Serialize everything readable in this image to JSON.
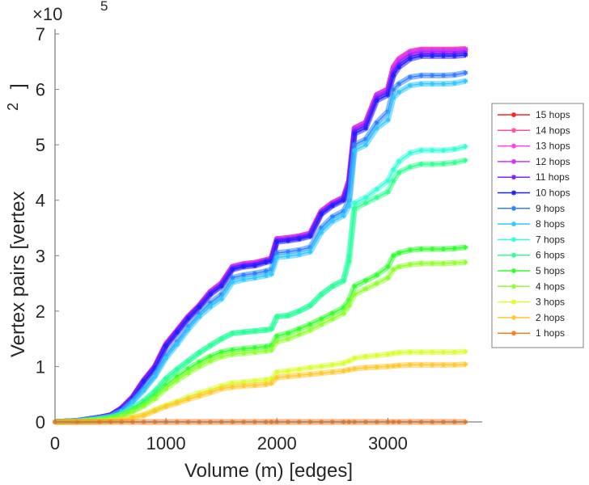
{
  "chart_data": {
    "type": "line",
    "title": "",
    "xlabel": "Volume (m) [edges]",
    "ylabel": "Vertex pairs [vertex",
    "ylabel_superscript": "2",
    "ylabel_close": "]",
    "y_multiplier_base": "×10",
    "y_multiplier_exponent": "5",
    "xlim": [
      0,
      3850
    ],
    "ylim": [
      0,
      7
    ],
    "xticks": [
      0,
      1000,
      2000,
      3000
    ],
    "xtick_labels": [
      "0",
      "1000",
      "2000",
      "3000"
    ],
    "yticks": [
      0,
      1,
      2,
      3,
      4,
      5,
      6,
      7
    ],
    "ytick_labels": [
      "0",
      "1",
      "2",
      "3",
      "4",
      "5",
      "6",
      "7"
    ],
    "grid": false,
    "legend_position": "right",
    "x": [
      0,
      200,
      400,
      500,
      600,
      700,
      800,
      900,
      1000,
      1100,
      1200,
      1300,
      1400,
      1500,
      1600,
      1700,
      1800,
      1900,
      1950,
      2000,
      2100,
      2200,
      2300,
      2400,
      2500,
      2600,
      2650,
      2700,
      2800,
      2900,
      3000,
      3050,
      3100,
      3200,
      3300,
      3400,
      3500,
      3600,
      3700
    ],
    "series": [
      {
        "name": "15 hops",
        "color": "#ff2020",
        "values": [
          0,
          0.02,
          0.08,
          0.12,
          0.25,
          0.45,
          0.75,
          1.0,
          1.4,
          1.65,
          1.9,
          2.1,
          2.35,
          2.5,
          2.8,
          2.85,
          2.87,
          2.92,
          2.95,
          3.3,
          3.32,
          3.35,
          3.4,
          3.8,
          3.95,
          4.05,
          4.35,
          5.3,
          5.4,
          5.9,
          6.0,
          6.4,
          6.55,
          6.68,
          6.72,
          6.72,
          6.72,
          6.72,
          6.73
        ]
      },
      {
        "name": "14 hops",
        "color": "#ff4fa0",
        "values": [
          0,
          0.02,
          0.08,
          0.12,
          0.25,
          0.45,
          0.75,
          1.0,
          1.4,
          1.65,
          1.9,
          2.1,
          2.35,
          2.5,
          2.8,
          2.85,
          2.87,
          2.92,
          2.95,
          3.3,
          3.32,
          3.35,
          3.4,
          3.8,
          3.95,
          4.05,
          4.35,
          5.3,
          5.4,
          5.9,
          6.0,
          6.4,
          6.55,
          6.68,
          6.72,
          6.72,
          6.72,
          6.72,
          6.73
        ]
      },
      {
        "name": "13 hops",
        "color": "#ff40e0",
        "values": [
          0,
          0.02,
          0.08,
          0.12,
          0.25,
          0.45,
          0.75,
          1.0,
          1.4,
          1.65,
          1.9,
          2.1,
          2.35,
          2.5,
          2.8,
          2.85,
          2.87,
          2.92,
          2.95,
          3.3,
          3.32,
          3.35,
          3.4,
          3.8,
          3.95,
          4.05,
          4.35,
          5.3,
          5.4,
          5.9,
          6.0,
          6.4,
          6.55,
          6.68,
          6.71,
          6.71,
          6.71,
          6.71,
          6.72
        ]
      },
      {
        "name": "12 hops",
        "color": "#d030ff",
        "values": [
          0,
          0.02,
          0.08,
          0.12,
          0.25,
          0.45,
          0.75,
          1.0,
          1.4,
          1.65,
          1.9,
          2.1,
          2.35,
          2.5,
          2.8,
          2.85,
          2.87,
          2.92,
          2.95,
          3.3,
          3.32,
          3.35,
          3.4,
          3.8,
          3.95,
          4.05,
          4.35,
          5.3,
          5.4,
          5.9,
          6.0,
          6.38,
          6.52,
          6.66,
          6.7,
          6.7,
          6.7,
          6.7,
          6.71
        ]
      },
      {
        "name": "11 hops",
        "color": "#8020ff",
        "values": [
          0,
          0.02,
          0.08,
          0.12,
          0.24,
          0.44,
          0.74,
          0.98,
          1.38,
          1.63,
          1.88,
          2.08,
          2.32,
          2.47,
          2.77,
          2.82,
          2.84,
          2.9,
          2.92,
          3.27,
          3.29,
          3.32,
          3.37,
          3.77,
          3.92,
          4.02,
          4.3,
          5.25,
          5.35,
          5.85,
          5.95,
          6.3,
          6.45,
          6.6,
          6.64,
          6.64,
          6.64,
          6.64,
          6.66
        ]
      },
      {
        "name": "10 hops",
        "color": "#2020ff",
        "values": [
          0,
          0.02,
          0.08,
          0.12,
          0.24,
          0.43,
          0.73,
          0.97,
          1.37,
          1.62,
          1.87,
          2.07,
          2.3,
          2.45,
          2.75,
          2.8,
          2.82,
          2.88,
          2.9,
          3.25,
          3.27,
          3.3,
          3.35,
          3.75,
          3.9,
          4.0,
          4.25,
          5.2,
          5.3,
          5.8,
          5.9,
          6.25,
          6.4,
          6.55,
          6.6,
          6.6,
          6.6,
          6.6,
          6.62
        ]
      },
      {
        "name": "9 hops",
        "color": "#2f7fff",
        "values": [
          0,
          0.02,
          0.07,
          0.1,
          0.2,
          0.38,
          0.6,
          0.85,
          1.2,
          1.45,
          1.72,
          1.95,
          2.15,
          2.3,
          2.6,
          2.65,
          2.68,
          2.72,
          2.75,
          3.05,
          3.07,
          3.1,
          3.15,
          3.5,
          3.7,
          3.8,
          4.0,
          5.0,
          5.1,
          5.4,
          5.6,
          6.0,
          6.1,
          6.22,
          6.25,
          6.25,
          6.25,
          6.26,
          6.3
        ]
      },
      {
        "name": "8 hops",
        "color": "#30c8ff",
        "values": [
          0,
          0.02,
          0.07,
          0.1,
          0.19,
          0.36,
          0.57,
          0.82,
          1.15,
          1.4,
          1.67,
          1.9,
          2.08,
          2.22,
          2.52,
          2.57,
          2.6,
          2.64,
          2.67,
          2.97,
          2.99,
          3.02,
          3.07,
          3.42,
          3.62,
          3.72,
          3.9,
          4.9,
          5.0,
          5.3,
          5.45,
          5.85,
          5.95,
          6.07,
          6.1,
          6.1,
          6.1,
          6.11,
          6.15
        ]
      },
      {
        "name": "7 hops",
        "color": "#30ffd8",
        "values": [
          0,
          0.01,
          0.05,
          0.08,
          0.14,
          0.25,
          0.38,
          0.55,
          0.78,
          0.95,
          1.1,
          1.25,
          1.38,
          1.5,
          1.6,
          1.62,
          1.64,
          1.66,
          1.68,
          1.9,
          1.92,
          2.0,
          2.1,
          2.3,
          2.45,
          2.55,
          3.0,
          3.95,
          4.05,
          4.2,
          4.35,
          4.55,
          4.7,
          4.85,
          4.9,
          4.9,
          4.9,
          4.92,
          4.97
        ]
      },
      {
        "name": "6 hops",
        "color": "#30ff90",
        "values": [
          0,
          0.01,
          0.05,
          0.08,
          0.14,
          0.25,
          0.38,
          0.55,
          0.78,
          0.95,
          1.1,
          1.25,
          1.38,
          1.5,
          1.6,
          1.62,
          1.64,
          1.66,
          1.68,
          1.9,
          1.92,
          2.0,
          2.1,
          2.3,
          2.45,
          2.55,
          2.9,
          3.85,
          3.95,
          4.05,
          4.15,
          4.35,
          4.5,
          4.6,
          4.65,
          4.65,
          4.66,
          4.68,
          4.72
        ]
      },
      {
        "name": "5 hops",
        "color": "#30ff30",
        "values": [
          0,
          0.01,
          0.04,
          0.07,
          0.12,
          0.21,
          0.32,
          0.47,
          0.66,
          0.82,
          0.96,
          1.08,
          1.18,
          1.26,
          1.3,
          1.32,
          1.34,
          1.36,
          1.38,
          1.55,
          1.6,
          1.68,
          1.76,
          1.86,
          1.96,
          2.06,
          2.2,
          2.45,
          2.55,
          2.65,
          2.8,
          3.0,
          3.05,
          3.1,
          3.12,
          3.12,
          3.12,
          3.13,
          3.15
        ]
      },
      {
        "name": "4 hops",
        "color": "#90ff30",
        "values": [
          0,
          0.01,
          0.04,
          0.06,
          0.11,
          0.19,
          0.29,
          0.42,
          0.6,
          0.75,
          0.88,
          1.0,
          1.1,
          1.18,
          1.22,
          1.24,
          1.26,
          1.28,
          1.3,
          1.45,
          1.5,
          1.58,
          1.66,
          1.76,
          1.86,
          1.96,
          2.1,
          2.3,
          2.4,
          2.5,
          2.6,
          2.75,
          2.8,
          2.84,
          2.86,
          2.86,
          2.86,
          2.87,
          2.88
        ]
      },
      {
        "name": "3 hops",
        "color": "#d8ff30",
        "values": [
          0,
          0.0,
          0.01,
          0.02,
          0.04,
          0.08,
          0.13,
          0.22,
          0.3,
          0.37,
          0.45,
          0.52,
          0.58,
          0.65,
          0.7,
          0.72,
          0.74,
          0.76,
          0.78,
          0.9,
          0.92,
          0.95,
          0.98,
          1.0,
          1.03,
          1.06,
          1.1,
          1.15,
          1.18,
          1.2,
          1.22,
          1.24,
          1.25,
          1.26,
          1.26,
          1.26,
          1.26,
          1.26,
          1.27
        ]
      },
      {
        "name": "2 hops",
        "color": "#ffc830",
        "values": [
          0,
          0.0,
          0.01,
          0.02,
          0.04,
          0.08,
          0.12,
          0.2,
          0.28,
          0.34,
          0.41,
          0.47,
          0.53,
          0.6,
          0.63,
          0.65,
          0.66,
          0.68,
          0.7,
          0.8,
          0.82,
          0.84,
          0.86,
          0.88,
          0.9,
          0.92,
          0.94,
          0.96,
          0.98,
          0.99,
          1.0,
          1.01,
          1.02,
          1.03,
          1.03,
          1.03,
          1.03,
          1.03,
          1.04
        ]
      },
      {
        "name": "1 hops",
        "color": "#ff7a18",
        "values": [
          0,
          0,
          0,
          0,
          0,
          0,
          0,
          0,
          0,
          0,
          0,
          0,
          0,
          0,
          0,
          0,
          0,
          0,
          0,
          0,
          0,
          0,
          0,
          0,
          0,
          0,
          0,
          0,
          0,
          0,
          0,
          0,
          0,
          0,
          0,
          0,
          0,
          0,
          0
        ]
      }
    ]
  }
}
